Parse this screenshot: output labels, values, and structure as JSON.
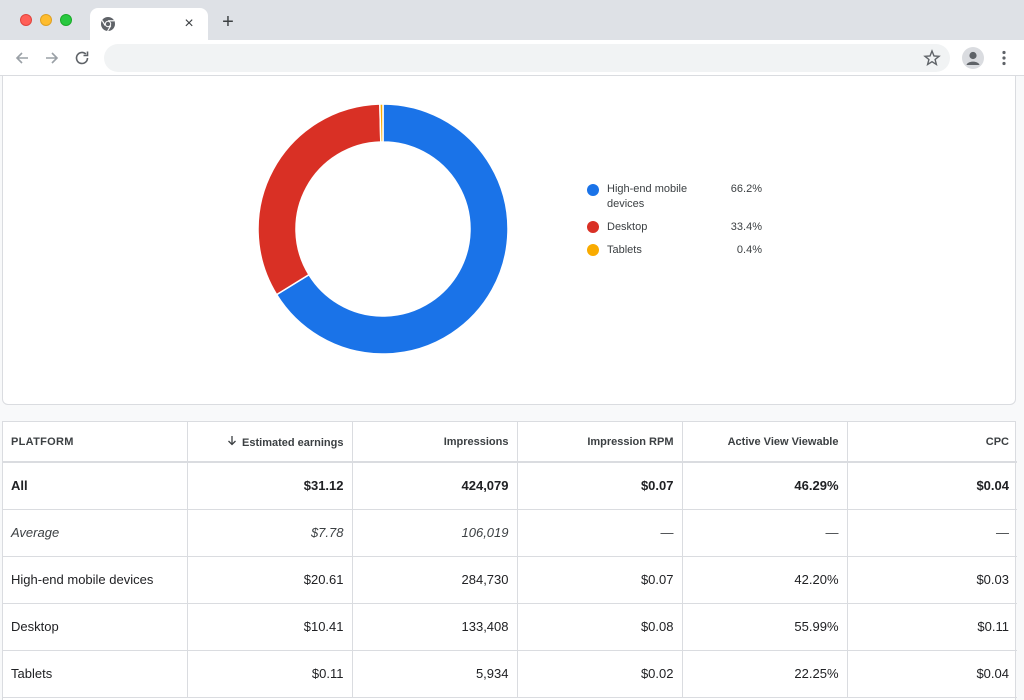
{
  "browser": {
    "tab_close": "×",
    "new_tab": "+"
  },
  "chart_data": {
    "type": "pie",
    "style": "donut",
    "categories": [
      "High-end mobile devices",
      "Desktop",
      "Tablets"
    ],
    "values": [
      66.2,
      33.4,
      0.4
    ],
    "value_labels": [
      "66.2%",
      "33.4%",
      "0.4%"
    ],
    "colors": [
      "#1a73e8",
      "#d93025",
      "#f9ab00"
    ],
    "legend_placement": "right",
    "legend_labels": [
      "High-end mobile",
      "devices",
      "Desktop",
      "Tablets"
    ]
  },
  "table": {
    "headers": [
      "PLATFORM",
      "Estimated earnings",
      "Impressions",
      "Impression RPM",
      "Active View Viewable",
      "CPC"
    ],
    "sort_icon": "arrow-down-icon",
    "rows": [
      [
        "All",
        "$31.12",
        "424,079",
        "$0.07",
        "46.29%",
        "$0.04"
      ],
      [
        "Average",
        "$7.78",
        "106,019",
        "—",
        "—",
        "—"
      ],
      [
        "High-end mobile devices",
        "$20.61",
        "284,730",
        "$0.07",
        "42.20%",
        "$0.03"
      ],
      [
        "Desktop",
        "$10.41",
        "133,408",
        "$0.08",
        "55.99%",
        "$0.11"
      ],
      [
        "Tablets",
        "$0.11",
        "5,934",
        "$0.02",
        "22.25%",
        "$0.04"
      ]
    ]
  }
}
